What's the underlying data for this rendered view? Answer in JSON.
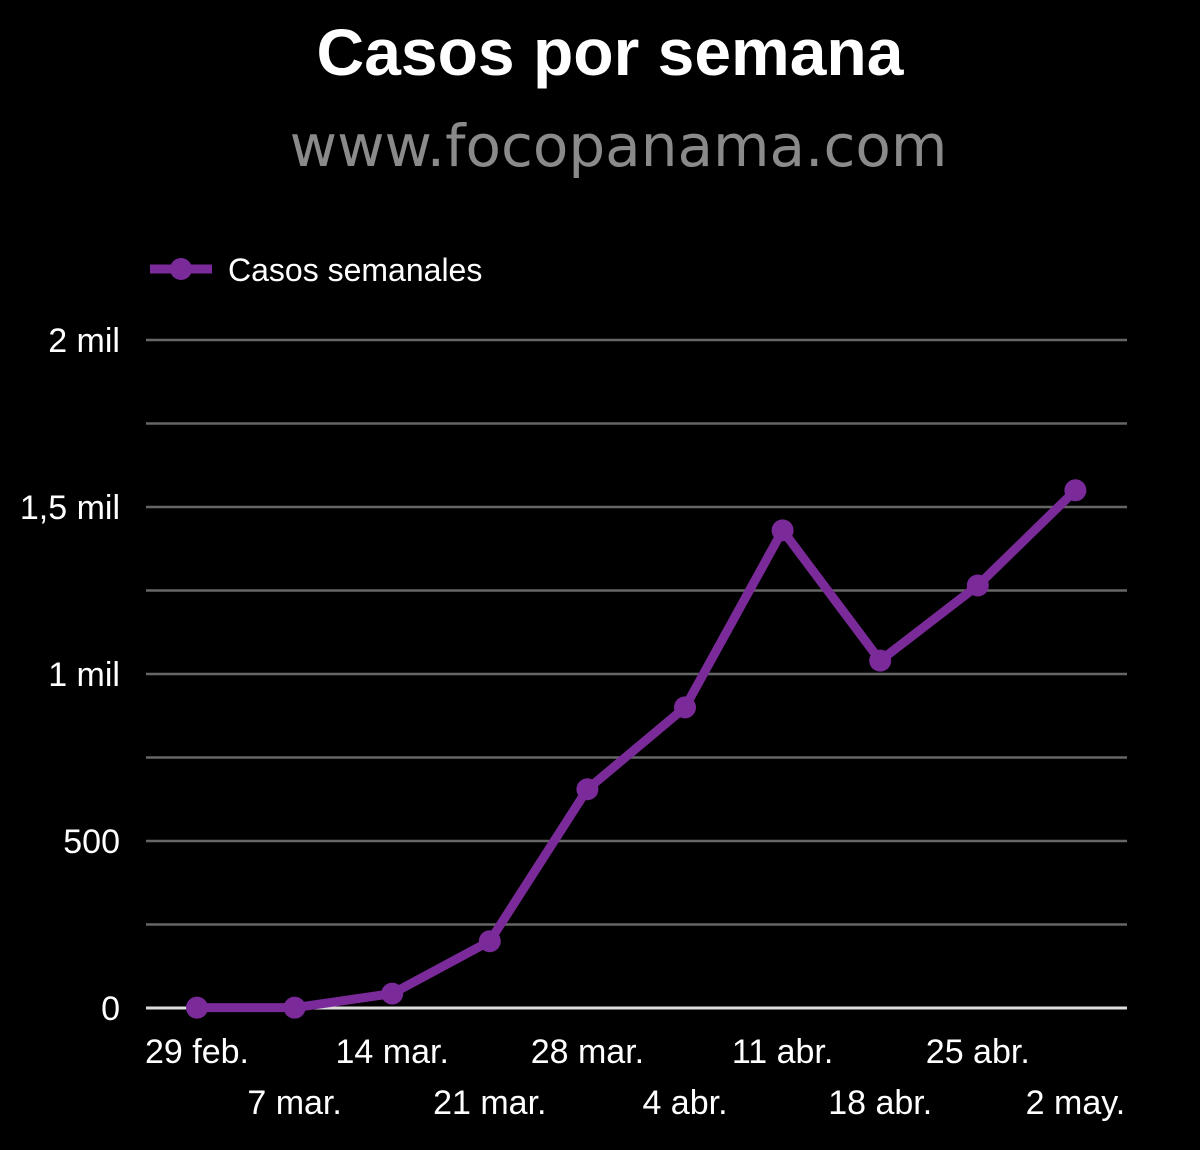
{
  "header": {
    "title": "Casos por semana",
    "subtitle": "www.focopanama.com"
  },
  "colors": {
    "background": "#000000",
    "series": "#7b2a9a",
    "grid": "#666666",
    "baseline": "#dddddd",
    "subtitle": "#8a8a8a"
  },
  "chart_data": {
    "type": "line",
    "x": [
      "29 feb.",
      "7 mar.",
      "14 mar.",
      "21 mar.",
      "28 mar.",
      "4 abr.",
      "11 abr.",
      "18 abr.",
      "25 abr.",
      "2 may."
    ],
    "series": [
      {
        "name": "Casos semanales",
        "values": [
          1,
          1,
          43,
          200,
          655,
          900,
          1430,
          1040,
          1265,
          1550
        ]
      }
    ],
    "y_ticks": [
      {
        "value": 0,
        "label": "0"
      },
      {
        "value": 500,
        "label": "500"
      },
      {
        "value": 1000,
        "label": "1 mil"
      },
      {
        "value": 1500,
        "label": "1,5 mil"
      },
      {
        "value": 2000,
        "label": "2 mil"
      }
    ],
    "ylim": [
      0,
      2000
    ],
    "grid": true,
    "legend": "top-left"
  }
}
